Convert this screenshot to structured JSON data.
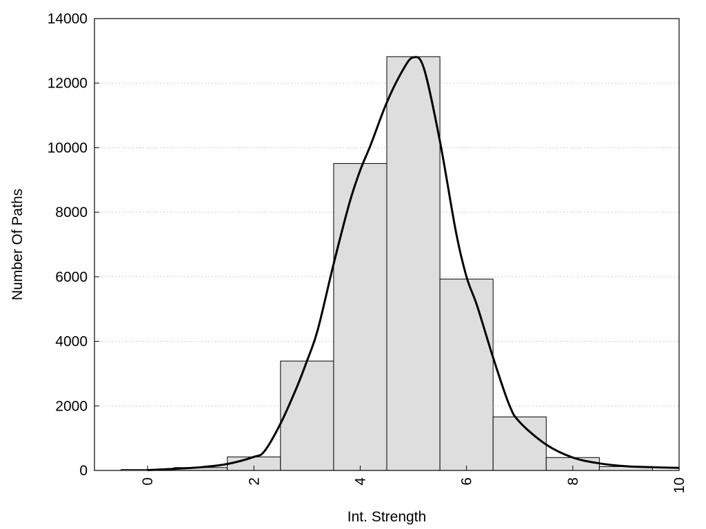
{
  "chart_data": {
    "type": "bar",
    "xlabel": "Int. Strength",
    "ylabel": "Number Of Paths",
    "xlim": [
      -1,
      10
    ],
    "ylim": [
      0,
      14000
    ],
    "x_ticks": [
      0,
      2,
      4,
      6,
      8,
      10
    ],
    "x_tick_labels": [
      "0",
      "2",
      "4",
      "6",
      "8",
      "10"
    ],
    "y_ticks": [
      0,
      2000,
      4000,
      6000,
      8000,
      10000,
      12000,
      14000
    ],
    "y_tick_labels": [
      "0",
      "2000",
      "4000",
      "6000",
      "8000",
      "10000",
      "12000",
      "14000"
    ],
    "grid": "horizontal dotted",
    "bars": [
      {
        "x": 0,
        "value": 30
      },
      {
        "x": 1,
        "value": 90
      },
      {
        "x": 2,
        "value": 420
      },
      {
        "x": 3,
        "value": 3390
      },
      {
        "x": 4,
        "value": 9510
      },
      {
        "x": 5,
        "value": 12820
      },
      {
        "x": 6,
        "value": 5930
      },
      {
        "x": 7,
        "value": 1660
      },
      {
        "x": 8,
        "value": 400
      },
      {
        "x": 9,
        "value": 120
      }
    ],
    "density_curve": {
      "x": [
        0,
        0.5,
        1.0,
        1.5,
        2.0,
        2.2,
        2.5,
        2.8,
        3.0,
        3.2,
        3.5,
        3.8,
        4.0,
        4.2,
        4.5,
        4.8,
        5.0,
        5.2,
        5.5,
        5.8,
        6.0,
        6.2,
        6.5,
        6.8,
        7.0,
        7.5,
        8.0,
        8.5,
        9.0,
        9.5,
        10.0
      ],
      "y": [
        10,
        50,
        100,
        200,
        420,
        600,
        1450,
        2550,
        3400,
        4350,
        6400,
        8300,
        9300,
        10100,
        11400,
        12400,
        12800,
        12450,
        10200,
        7400,
        6000,
        5100,
        3500,
        2050,
        1500,
        800,
        400,
        220,
        130,
        100,
        80
      ]
    },
    "colors": {
      "bar_fill": "#dedede",
      "bar_edge": "#000000",
      "curve": "#000000",
      "grid": "#c8c8c8"
    }
  }
}
